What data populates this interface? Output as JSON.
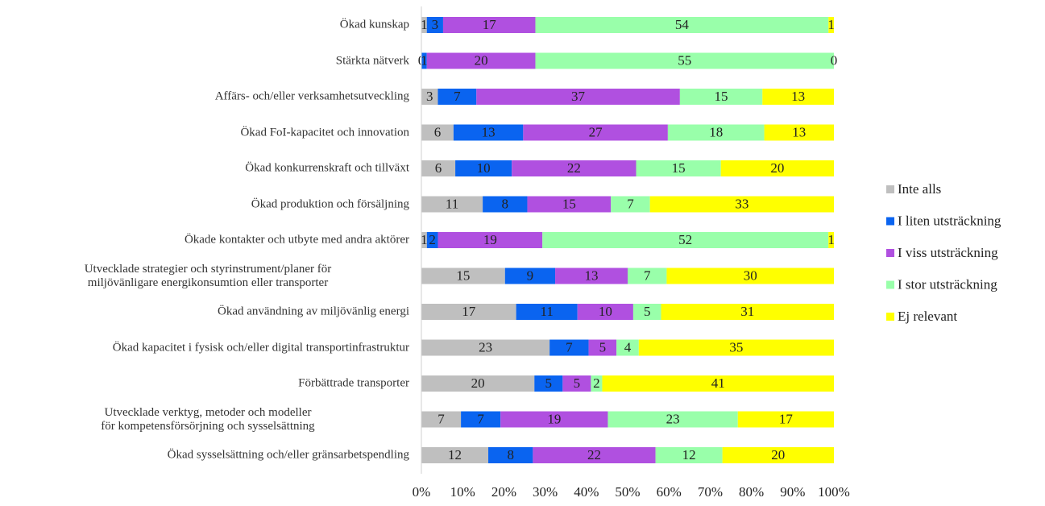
{
  "chart_data": {
    "type": "bar",
    "orientation": "horizontal",
    "stacking": "percent",
    "categories": [
      "Ökad kunskap",
      "Stärkta nätverk",
      "Affärs- och/eller verksamhetsutveckling",
      "Ökad FoI-kapacitet och innovation",
      "Ökad konkurrenskraft och tillväxt",
      "Ökad produktion och försäljning",
      "Ökade kontakter och utbyte med andra aktörer",
      "Utvecklade strategier och styrinstrument/planer för miljövänligare energikonsumtion eller transporter",
      "Ökad användning av miljövänlig energi",
      "Ökad kapacitet i fysisk och/eller digital transportinfrastruktur",
      "Förbättrade transporter",
      "Utvecklade verktyg, metoder och modeller för kompetensförsörjning och sysselsättning",
      "Ökad sysselsättning och/eller gränsarbetspendling"
    ],
    "series": [
      {
        "name": "Inte alls",
        "color": "#bfbfbf",
        "values": [
          1,
          0,
          3,
          6,
          6,
          11,
          1,
          15,
          17,
          23,
          20,
          7,
          12
        ]
      },
      {
        "name": "I liten utsträckning",
        "color": "#0a64f0",
        "values": [
          3,
          1,
          7,
          13,
          10,
          8,
          2,
          9,
          11,
          7,
          5,
          7,
          8
        ]
      },
      {
        "name": "I viss utsträckning",
        "color": "#b050e0",
        "values": [
          17,
          20,
          37,
          27,
          22,
          15,
          19,
          13,
          10,
          5,
          5,
          19,
          22
        ]
      },
      {
        "name": "I stor utsträckning",
        "color": "#99ffaa",
        "values": [
          54,
          55,
          15,
          18,
          15,
          7,
          52,
          7,
          5,
          4,
          2,
          23,
          12
        ]
      },
      {
        "name": "Ej relevant",
        "color": "#ffff00",
        "values": [
          1,
          0,
          13,
          13,
          20,
          33,
          1,
          30,
          31,
          35,
          41,
          17,
          20
        ]
      }
    ],
    "xlim": [
      0,
      100
    ],
    "xticks": [
      {
        "value": 0,
        "label": "0%"
      },
      {
        "value": 10,
        "label": "10%"
      },
      {
        "value": 20,
        "label": "20%"
      },
      {
        "value": 30,
        "label": "30%"
      },
      {
        "value": 40,
        "label": "40%"
      },
      {
        "value": 50,
        "label": "50%"
      },
      {
        "value": 60,
        "label": "60%"
      },
      {
        "value": 70,
        "label": "70%"
      },
      {
        "value": 80,
        "label": "80%"
      },
      {
        "value": 90,
        "label": "90%"
      },
      {
        "value": 100,
        "label": "100%"
      }
    ],
    "legend": "right"
  }
}
